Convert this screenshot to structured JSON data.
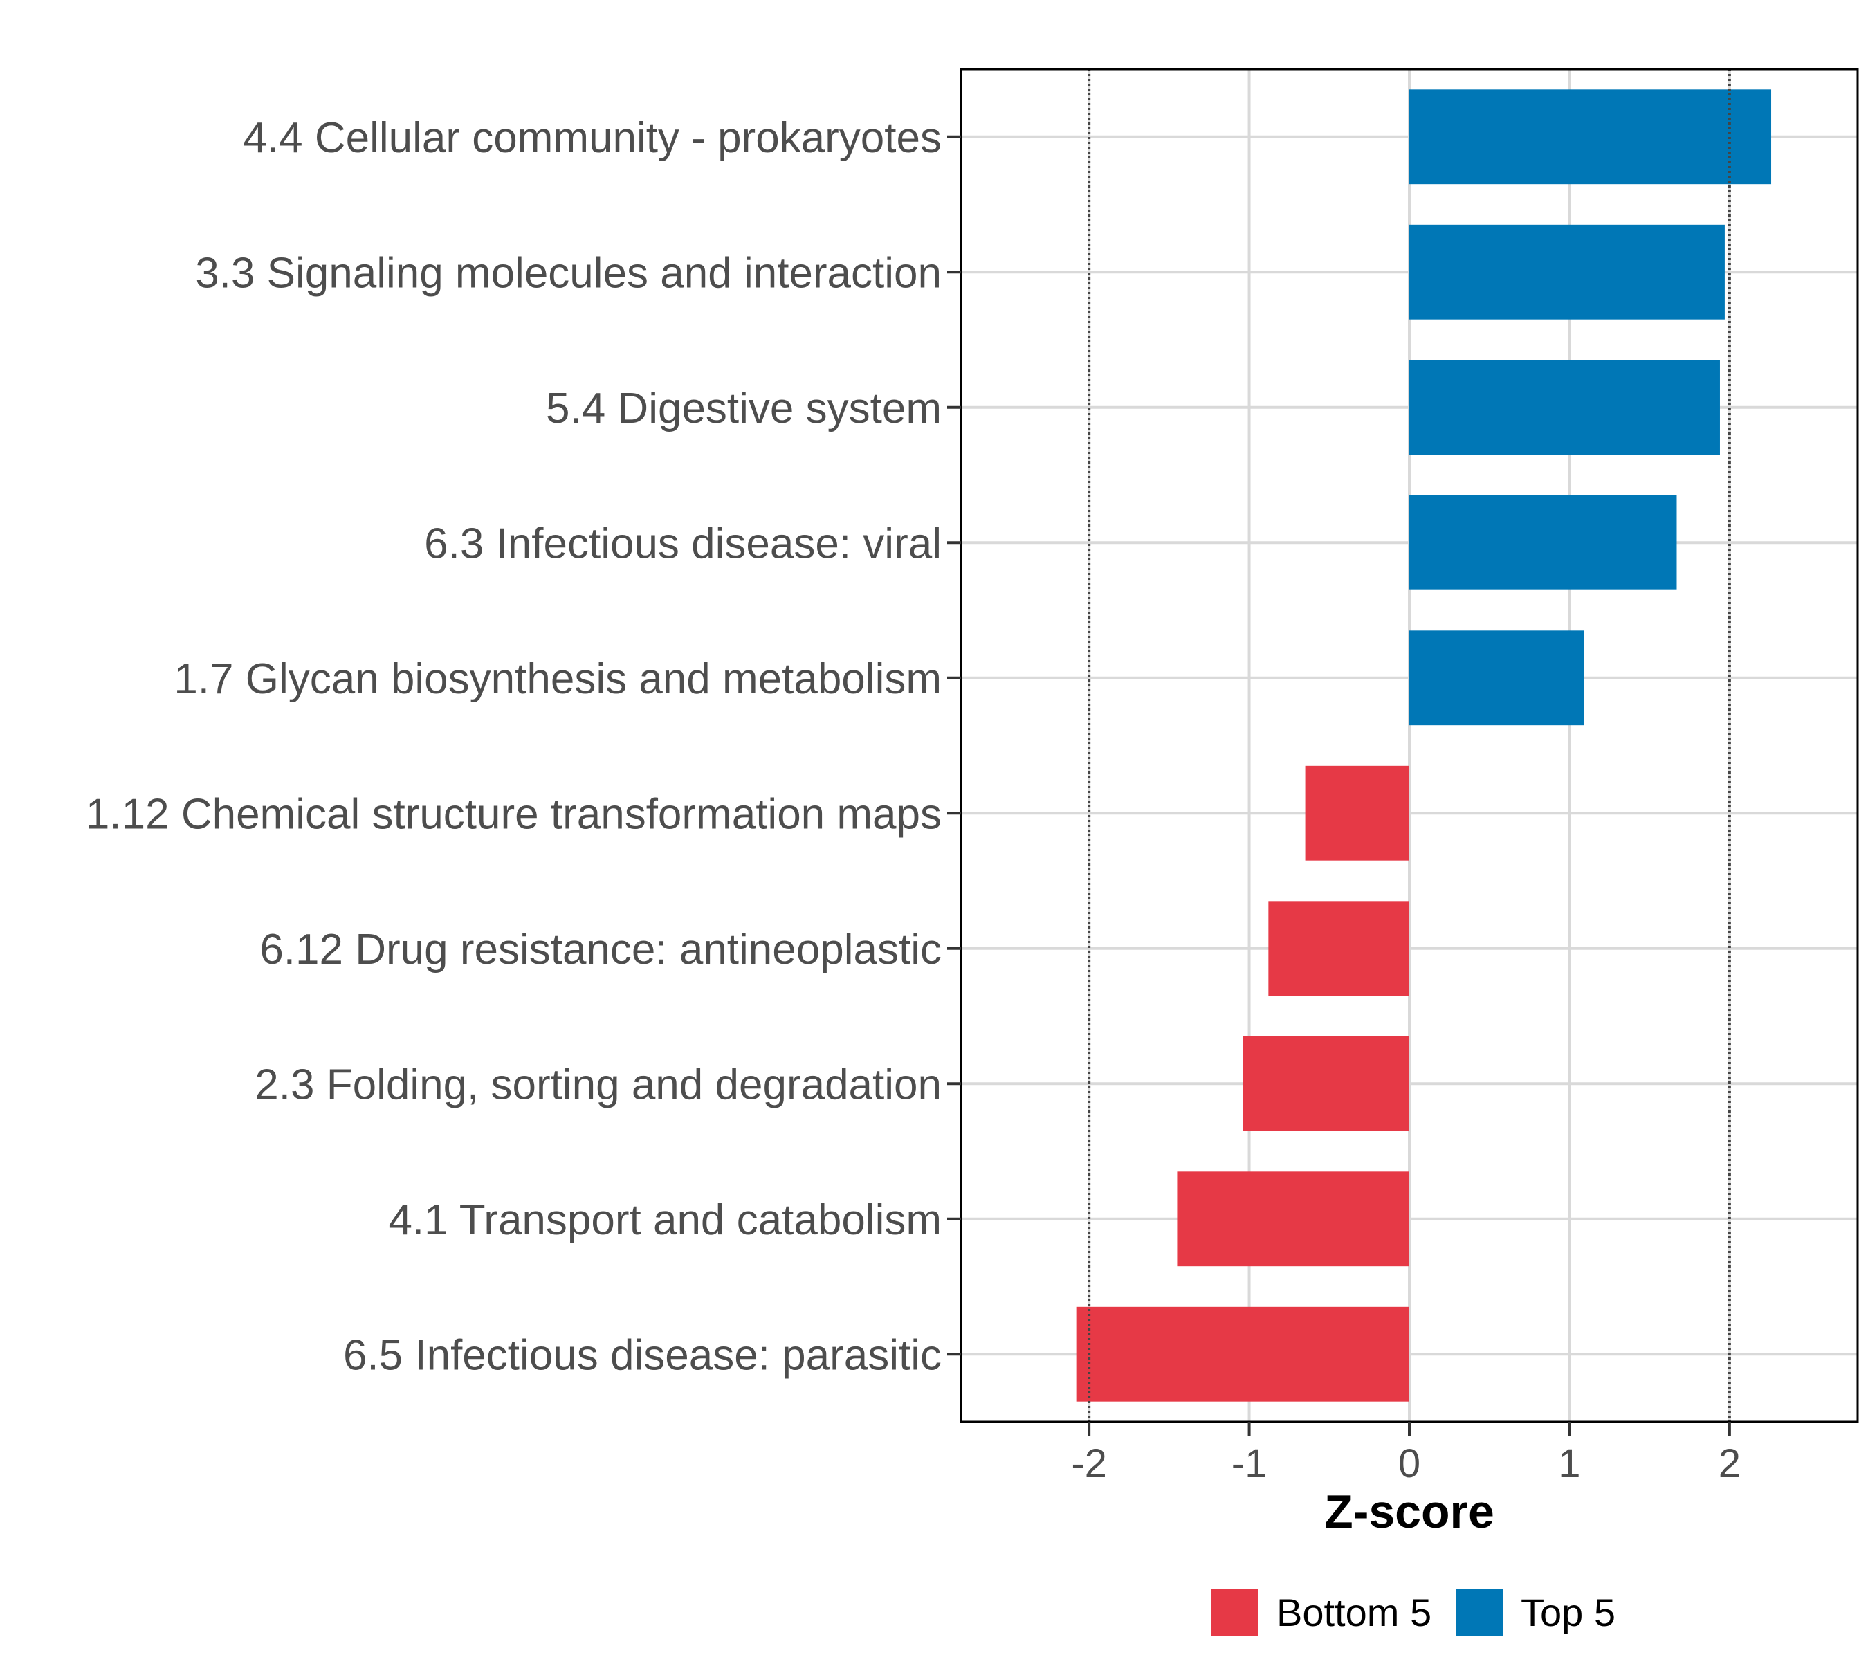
{
  "chart_data": {
    "type": "bar",
    "orientation": "horizontal",
    "xlabel": "Z-score",
    "xlim": [
      -2.8,
      2.8
    ],
    "xticks": [
      -2,
      -1,
      0,
      1,
      2
    ],
    "xtick_labels": [
      "-2",
      "-1",
      "0",
      "1",
      "2"
    ],
    "reference_lines": [
      -2,
      2
    ],
    "grid": true,
    "legend_position": "bottom",
    "categories": [
      "4.4 Cellular community - prokaryotes",
      "3.3 Signaling molecules and interaction",
      "5.4 Digestive system",
      "6.3 Infectious disease: viral",
      "1.7 Glycan biosynthesis and metabolism",
      "1.12 Chemical structure transformation maps",
      "6.12 Drug resistance: antineoplastic",
      "2.3 Folding, sorting and degradation",
      "4.1 Transport and catabolism",
      "6.5 Infectious disease: parasitic"
    ],
    "values": [
      2.26,
      1.97,
      1.94,
      1.67,
      1.09,
      -0.65,
      -0.88,
      -1.04,
      -1.45,
      -2.08
    ],
    "groups": [
      "Top 5",
      "Top 5",
      "Top 5",
      "Top 5",
      "Top 5",
      "Bottom 5",
      "Bottom 5",
      "Bottom 5",
      "Bottom 5",
      "Bottom 5"
    ],
    "legend": [
      {
        "name": "Bottom 5",
        "color": "#E63946"
      },
      {
        "name": "Top 5",
        "color": "#0077B6"
      }
    ]
  }
}
